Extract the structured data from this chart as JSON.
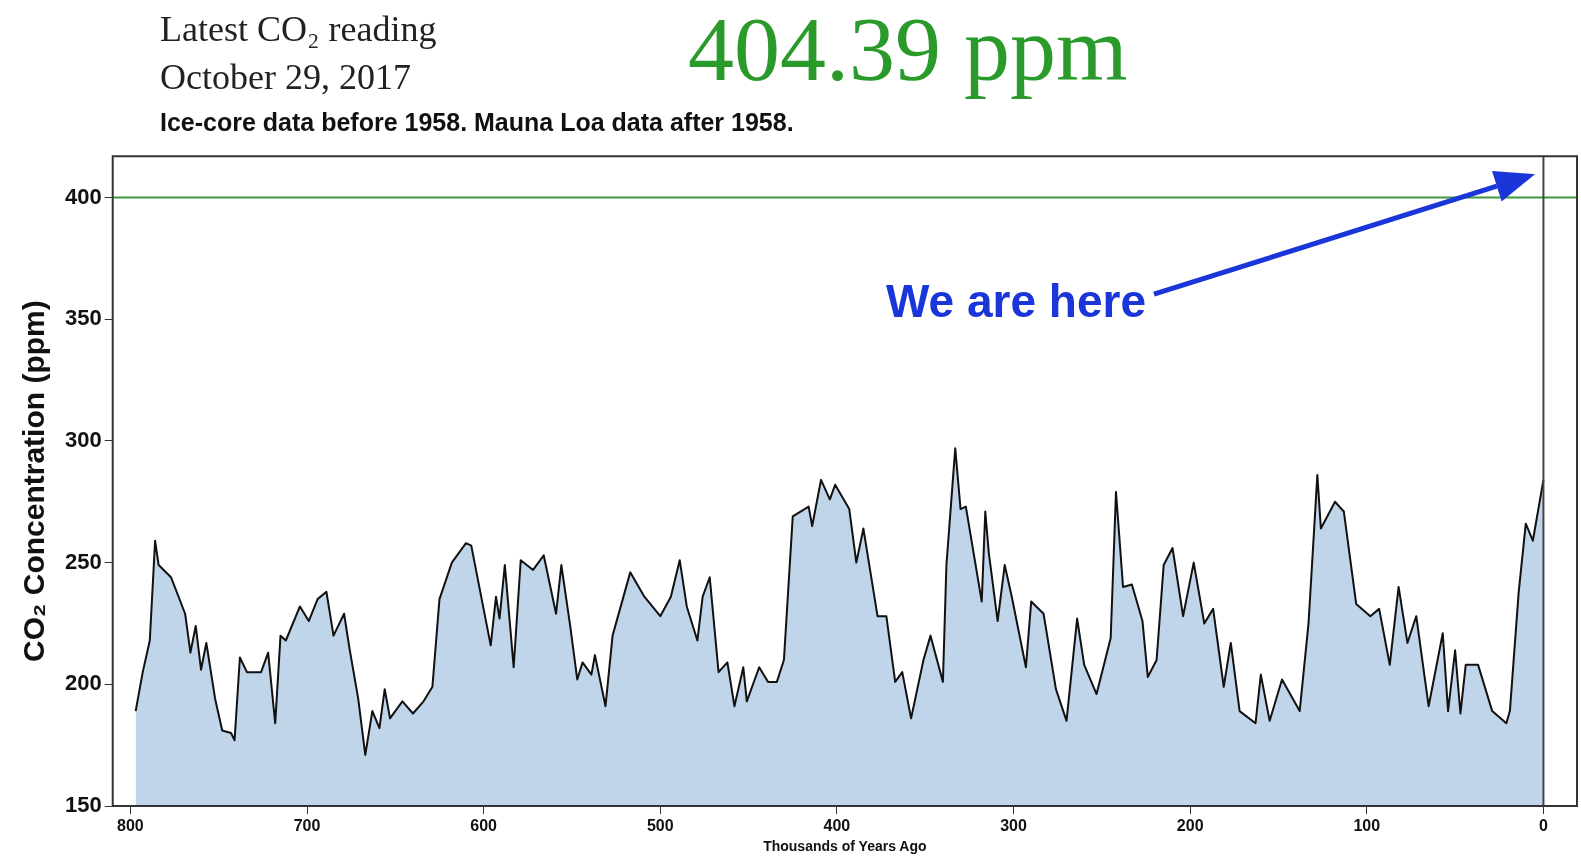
{
  "chart_data": {
    "type": "area",
    "title": "Latest CO₂ reading",
    "subtitle": "Ice-core data before 1958. Mauna Loa data after 1958.",
    "xlabel": "Thousands of Years Ago",
    "ylabel": "CO₂ Concentration (ppm)",
    "annotations": [
      "October 29, 2017",
      "404.39 ppm",
      "We are here"
    ],
    "series": [
      {
        "color": "#c0d4ea",
        "x": [
          797,
          793,
          789,
          786,
          784,
          777,
          769,
          766,
          763,
          760,
          757,
          752,
          748,
          743,
          741,
          738,
          734,
          726,
          722,
          718,
          715,
          712,
          704,
          699,
          694,
          689,
          685,
          679,
          676,
          671,
          667,
          663,
          659,
          656,
          653,
          646,
          640,
          634,
          629,
          625,
          618,
          610,
          607,
          596,
          593,
          591,
          588,
          583,
          579,
          572,
          566,
          559,
          556,
          551,
          547,
          544,
          539,
          537,
          531,
          527,
          517,
          509,
          500,
          494,
          489,
          485,
          479,
          476,
          472,
          467,
          462,
          458,
          453,
          451,
          444,
          439,
          434,
          430,
          425,
          416,
          414,
          409,
          404,
          401,
          393,
          389,
          385,
          377,
          372,
          367,
          363,
          358,
          351,
          347,
          340,
          338,
          333,
          330,
          327,
          318,
          316,
          314,
          309,
          305,
          301,
          293,
          290,
          283,
          276,
          270,
          264,
          260,
          253,
          245,
          242,
          238,
          233,
          227,
          224,
          219,
          215,
          210,
          204,
          198,
          192,
          187,
          181,
          177,
          172,
          163,
          160,
          155,
          148,
          138,
          133,
          128,
          126,
          118,
          113,
          106,
          98,
          93,
          87,
          82,
          77,
          72,
          65,
          57,
          54,
          50,
          47,
          44,
          37,
          29,
          21,
          19,
          14,
          10,
          6,
          0
        ],
        "values": [
          189,
          205,
          218,
          259,
          249,
          244,
          229,
          213,
          224,
          206,
          217,
          194,
          181,
          180,
          177,
          211,
          205,
          205,
          213,
          184,
          220,
          218,
          232,
          226,
          235,
          238,
          220,
          229,
          215,
          194,
          171,
          189,
          182,
          198,
          186,
          193,
          188,
          193,
          199,
          235,
          250,
          258,
          257,
          216,
          236,
          227,
          249,
          207,
          251,
          247,
          253,
          229,
          249,
          224,
          202,
          209,
          204,
          212,
          191,
          220,
          246,
          236,
          228,
          236,
          251,
          232,
          218,
          236,
          244,
          205,
          209,
          191,
          207,
          193,
          207,
          201,
          201,
          210,
          269,
          273,
          265,
          284,
          276,
          282,
          272,
          250,
          264,
          228,
          228,
          201,
          205,
          186,
          210,
          220,
          201,
          249,
          297,
          272,
          273,
          234,
          271,
          254,
          226,
          249,
          236,
          207,
          234,
          229,
          198,
          185,
          227,
          208,
          196,
          219,
          279,
          240,
          241,
          226,
          203,
          210,
          249,
          256,
          228,
          250,
          225,
          231,
          199,
          217,
          189,
          184,
          204,
          185,
          202,
          189,
          225,
          286,
          264,
          275,
          271,
          233,
          228,
          231,
          208,
          240,
          217,
          228,
          191,
          221,
          189,
          214,
          188,
          208,
          208,
          189,
          184,
          189,
          238,
          266,
          259,
          284
        ]
      }
    ],
    "xlim": [
      810,
      -19
    ],
    "xticks": [
      800,
      700,
      600,
      500,
      400,
      300,
      200,
      100,
      0
    ],
    "ylim": [
      150,
      417
    ],
    "yticks": [
      150,
      200,
      250,
      300,
      350,
      400
    ],
    "ref_lines": [
      {
        "axis": "y",
        "value": 400,
        "color": "#3c9a3c"
      },
      {
        "axis": "x",
        "value": 0,
        "color": "#444444"
      }
    ],
    "grid": false
  }
}
